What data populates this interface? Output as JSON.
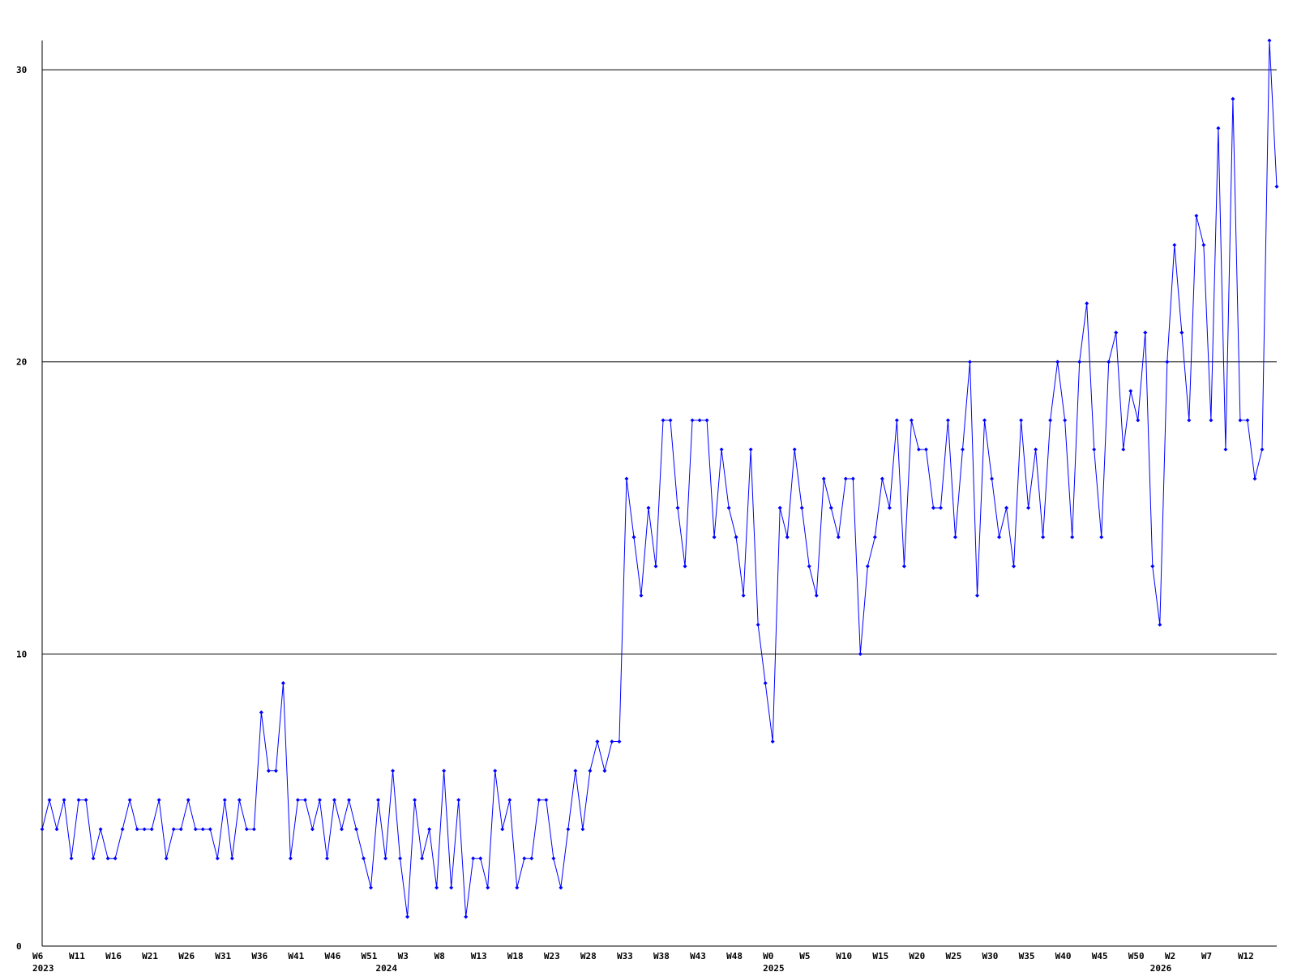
{
  "chart_data": {
    "type": "line",
    "categories": [
      "W6",
      null,
      null,
      null,
      null,
      "W11",
      null,
      null,
      null,
      null,
      "W16",
      null,
      null,
      null,
      null,
      "W21",
      null,
      null,
      null,
      null,
      "W26",
      null,
      null,
      null,
      null,
      "W31",
      null,
      null,
      null,
      null,
      "W36",
      null,
      null,
      null,
      null,
      "W41",
      null,
      null,
      null,
      null,
      "W46",
      null,
      null,
      null,
      null,
      "W51",
      null,
      null,
      null,
      null,
      "W3",
      null,
      null,
      null,
      null,
      "W8",
      null,
      null,
      null,
      null,
      "W13",
      null,
      null,
      null,
      null,
      "W18",
      null,
      null,
      null,
      null,
      "W23",
      null,
      null,
      null,
      null,
      "W28",
      null,
      null,
      null,
      null,
      "W33",
      null,
      null,
      null,
      null,
      "W38",
      null,
      null,
      null,
      null,
      "W43",
      null,
      null,
      null,
      null,
      "W48",
      null,
      null,
      null,
      null,
      "W0",
      null,
      null,
      null,
      null,
      "W5",
      null,
      null,
      null,
      null,
      "W10",
      null,
      null,
      null,
      null,
      "W15",
      null,
      null,
      null,
      null,
      "W20",
      null,
      null,
      null,
      null,
      "W25",
      null,
      null,
      null,
      null,
      "W30",
      null,
      null,
      null,
      null,
      "W35",
      null,
      null,
      null,
      null,
      "W40",
      null,
      null,
      null,
      null,
      "W45",
      null,
      null,
      null,
      null,
      "W50",
      null,
      null,
      null,
      null,
      "W2",
      null,
      null,
      null,
      null,
      "W7",
      null,
      null,
      null,
      null,
      "W12",
      null,
      null,
      null,
      null
    ],
    "x_year_labels": [
      "2023",
      null,
      null,
      null,
      null,
      null,
      null,
      null,
      null,
      null,
      null,
      null,
      null,
      null,
      null,
      null,
      null,
      null,
      null,
      null,
      null,
      null,
      null,
      null,
      null,
      null,
      null,
      null,
      null,
      null,
      null,
      null,
      null,
      null,
      null,
      null,
      null,
      null,
      null,
      null,
      null,
      null,
      null,
      null,
      null,
      null,
      null,
      "2024",
      null,
      null,
      null,
      null,
      null,
      null,
      null,
      null,
      null,
      null,
      null,
      null,
      null,
      null,
      null,
      null,
      null,
      null,
      null,
      null,
      null,
      null,
      null,
      null,
      null,
      null,
      null,
      null,
      null,
      null,
      null,
      null,
      null,
      null,
      null,
      null,
      null,
      null,
      null,
      null,
      null,
      null,
      null,
      null,
      null,
      null,
      null,
      null,
      null,
      null,
      null,
      null,
      "2025",
      null,
      null,
      null,
      null,
      null,
      null,
      null,
      null,
      null,
      null,
      null,
      null,
      null,
      null,
      null,
      null,
      null,
      null,
      null,
      null,
      null,
      null,
      null,
      null,
      null,
      null,
      null,
      null,
      null,
      null,
      null,
      null,
      null,
      null,
      null,
      null,
      null,
      null,
      null,
      null,
      null,
      null,
      null,
      null,
      null,
      null,
      null,
      null,
      null,
      null,
      null,
      null,
      "2026",
      null,
      null,
      null,
      null,
      null,
      null,
      null,
      null,
      null,
      null,
      null,
      null,
      null,
      null,
      null,
      null
    ],
    "series": [
      {
        "color": "#0000ff",
        "values": [
          4,
          5,
          4,
          5,
          3,
          5,
          5,
          3,
          4,
          3,
          3,
          4,
          5,
          4,
          4,
          4,
          5,
          3,
          4,
          4,
          5,
          4,
          4,
          4,
          3,
          5,
          3,
          5,
          4,
          4,
          8,
          6,
          6,
          9,
          3,
          5,
          5,
          4,
          5,
          3,
          5,
          4,
          5,
          4,
          3,
          2,
          5,
          3,
          6,
          3,
          1,
          5,
          3,
          4,
          2,
          6,
          2,
          5,
          1,
          3,
          3,
          2,
          6,
          4,
          5,
          2,
          3,
          3,
          5,
          5,
          3,
          2,
          4,
          6,
          4,
          6,
          7,
          6,
          7,
          7,
          16,
          14,
          12,
          15,
          13,
          18,
          18,
          15,
          13,
          18,
          18,
          18,
          14,
          17,
          15,
          14,
          12,
          17,
          11,
          9,
          7,
          15,
          14,
          17,
          15,
          13,
          12,
          16,
          15,
          14,
          16,
          16,
          10,
          13,
          14,
          16,
          15,
          18,
          13,
          18,
          17,
          17,
          15,
          15,
          18,
          14,
          17,
          20,
          12,
          18,
          16,
          14,
          15,
          13,
          18,
          15,
          17,
          14,
          18,
          20,
          18,
          14,
          20,
          22,
          17,
          14,
          20,
          21,
          17,
          19,
          18,
          21,
          13,
          11,
          20,
          24,
          21,
          18,
          25,
          24,
          18,
          28,
          17,
          29,
          18,
          18,
          16,
          17,
          31,
          26
        ]
      }
    ],
    "ylim": [
      0,
      31
    ],
    "yticks": [
      0,
      10,
      20,
      30
    ],
    "grid": true
  }
}
